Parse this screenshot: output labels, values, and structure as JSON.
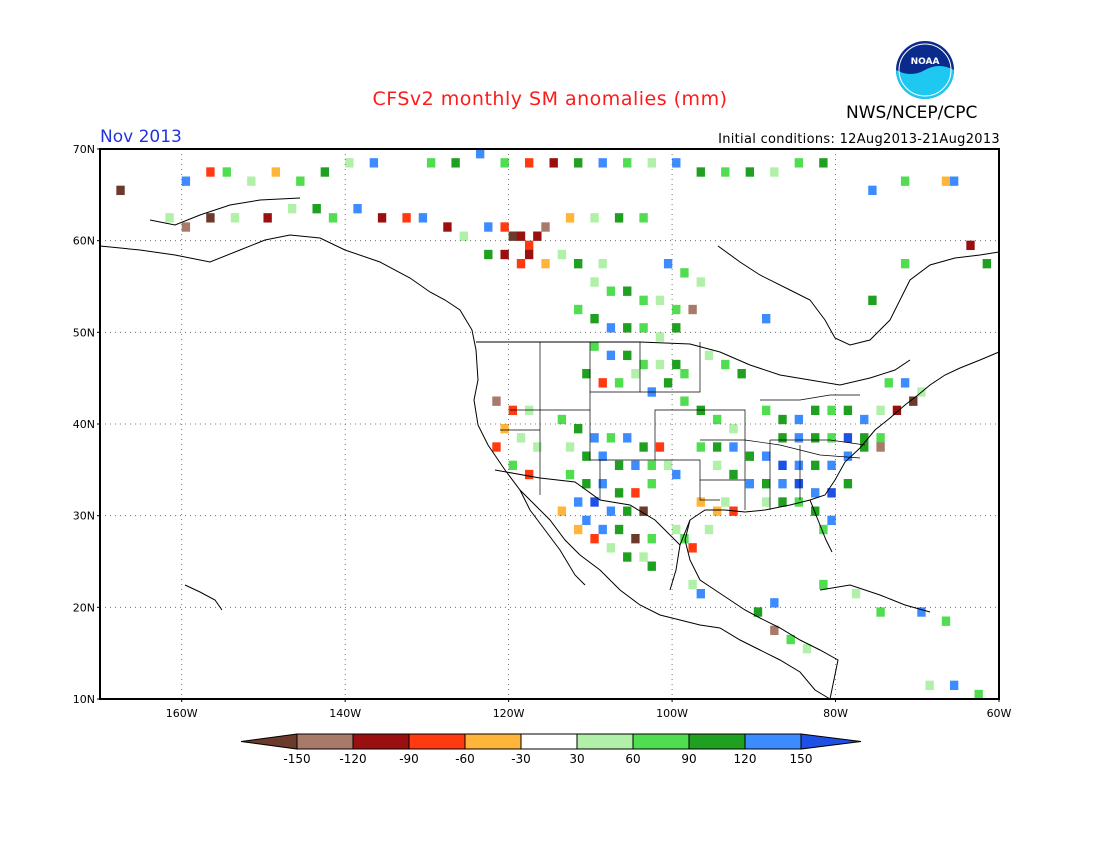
{
  "header": {
    "title": "CFSv2 monthly SM anomalies (mm)",
    "agency": "NWS/NCEP/CPC",
    "logo_text": "NOAA",
    "month": "Nov 2013",
    "initial_conditions": "Initial conditions: 12Aug2013-21Aug2013"
  },
  "axes": {
    "lat_labels": [
      "10N",
      "20N",
      "30N",
      "40N",
      "50N",
      "60N",
      "70N"
    ],
    "lon_labels": [
      "160W",
      "140W",
      "120W",
      "100W",
      "80W",
      "60W"
    ],
    "lat_range": [
      10,
      70
    ],
    "lon_range": [
      -170,
      -60
    ]
  },
  "colorbar": {
    "tick_labels": [
      "-150",
      "-120",
      "-90",
      "-60",
      "-30",
      "30",
      "60",
      "90",
      "120",
      "150"
    ],
    "colors": [
      "#6b3a2a",
      "#a87a6a",
      "#9a0f0f",
      "#ff3a10",
      "#ffb43a",
      "#ffffff",
      "#b0f0a8",
      "#50dd50",
      "#20a020",
      "#3c8cff",
      "#1e50e6"
    ]
  },
  "cells": [
    [
      -165,
      68,
      5
    ],
    [
      -160,
      66,
      9
    ],
    [
      -157,
      67,
      3
    ],
    [
      -155,
      67,
      7
    ],
    [
      -152,
      66,
      6
    ],
    [
      -149,
      67,
      4
    ],
    [
      -146,
      66,
      7
    ],
    [
      -143,
      67,
      8
    ],
    [
      -140,
      68,
      6
    ],
    [
      -137,
      68,
      9
    ],
    [
      -133,
      69,
      5
    ],
    [
      -130,
      68,
      7
    ],
    [
      -127,
      68,
      8
    ],
    [
      -124,
      69,
      9
    ],
    [
      -121,
      68,
      7
    ],
    [
      -118,
      68,
      3
    ],
    [
      -115,
      68,
      2
    ],
    [
      -112,
      68,
      8
    ],
    [
      -109,
      68,
      9
    ],
    [
      -106,
      68,
      7
    ],
    [
      -103,
      68,
      6
    ],
    [
      -100,
      68,
      9
    ],
    [
      -97,
      67,
      8
    ],
    [
      -94,
      67,
      7
    ],
    [
      -91,
      67,
      8
    ],
    [
      -88,
      67,
      6
    ],
    [
      -85,
      68,
      7
    ],
    [
      -82,
      68,
      8
    ],
    [
      -76,
      65,
      9
    ],
    [
      -72,
      66,
      7
    ],
    [
      -67,
      66,
      4
    ],
    [
      -66,
      66,
      9
    ],
    [
      -168,
      65,
      0
    ],
    [
      -162,
      62,
      6
    ],
    [
      -160,
      61,
      1
    ],
    [
      -157,
      62,
      0
    ],
    [
      -154,
      62,
      6
    ],
    [
      -150,
      62,
      2
    ],
    [
      -147,
      63,
      6
    ],
    [
      -144,
      63,
      8
    ],
    [
      -142,
      62,
      7
    ],
    [
      -139,
      63,
      9
    ],
    [
      -136,
      62,
      2
    ],
    [
      -133,
      62,
      3
    ],
    [
      -131,
      62,
      9
    ],
    [
      -128,
      61,
      2
    ],
    [
      -126,
      60,
      6
    ],
    [
      -123,
      61,
      9
    ],
    [
      -121,
      61,
      3
    ],
    [
      -120,
      60,
      0
    ],
    [
      -119,
      60,
      2
    ],
    [
      -118,
      59,
      3
    ],
    [
      -117,
      60,
      2
    ],
    [
      -116,
      61,
      1
    ],
    [
      -113,
      62,
      4
    ],
    [
      -110,
      62,
      6
    ],
    [
      -107,
      62,
      8
    ],
    [
      -104,
      62,
      7
    ],
    [
      -123,
      58,
      8
    ],
    [
      -121,
      58,
      2
    ],
    [
      -119,
      57,
      3
    ],
    [
      -118,
      58,
      2
    ],
    [
      -116,
      57,
      4
    ],
    [
      -114,
      58,
      6
    ],
    [
      -112,
      57,
      8
    ],
    [
      -109,
      57,
      6
    ],
    [
      -101,
      57,
      9
    ],
    [
      -99,
      56,
      7
    ],
    [
      -97,
      55,
      6
    ],
    [
      -110,
      55,
      6
    ],
    [
      -108,
      54,
      7
    ],
    [
      -106,
      54,
      8
    ],
    [
      -104,
      53,
      7
    ],
    [
      -102,
      53,
      6
    ],
    [
      -100,
      52,
      7
    ],
    [
      -98,
      52,
      1
    ],
    [
      -112,
      52,
      7
    ],
    [
      -110,
      51,
      8
    ],
    [
      -108,
      50,
      9
    ],
    [
      -106,
      50,
      8
    ],
    [
      -104,
      50,
      7
    ],
    [
      -102,
      49,
      6
    ],
    [
      -100,
      50,
      8
    ],
    [
      -110,
      48,
      7
    ],
    [
      -108,
      47,
      9
    ],
    [
      -106,
      47,
      8
    ],
    [
      -104,
      46,
      7
    ],
    [
      -102,
      46,
      6
    ],
    [
      -100,
      46,
      8
    ],
    [
      -99,
      45,
      7
    ],
    [
      -111,
      45,
      8
    ],
    [
      -109,
      44,
      3
    ],
    [
      -107,
      44,
      7
    ],
    [
      -105,
      45,
      6
    ],
    [
      -103,
      43,
      9
    ],
    [
      -101,
      44,
      8
    ],
    [
      -99,
      42,
      7
    ],
    [
      -96,
      47,
      6
    ],
    [
      -94,
      46,
      7
    ],
    [
      -92,
      45,
      8
    ],
    [
      -97,
      41,
      8
    ],
    [
      -95,
      40,
      7
    ],
    [
      -93,
      39,
      6
    ],
    [
      -122,
      42,
      1
    ],
    [
      -120,
      41,
      3
    ],
    [
      -118,
      41,
      6
    ],
    [
      -121,
      39,
      4
    ],
    [
      -119,
      38,
      6
    ],
    [
      -117,
      37,
      6
    ],
    [
      -122,
      37,
      3
    ],
    [
      -120,
      35,
      7
    ],
    [
      -118,
      34,
      3
    ],
    [
      -114,
      40,
      7
    ],
    [
      -112,
      39,
      8
    ],
    [
      -110,
      38,
      9
    ],
    [
      -108,
      38,
      7
    ],
    [
      -106,
      38,
      9
    ],
    [
      -104,
      37,
      8
    ],
    [
      -102,
      37,
      3
    ],
    [
      -113,
      37,
      6
    ],
    [
      -111,
      36,
      8
    ],
    [
      -109,
      36,
      9
    ],
    [
      -107,
      35,
      8
    ],
    [
      -105,
      35,
      9
    ],
    [
      -103,
      35,
      7
    ],
    [
      -101,
      35,
      6
    ],
    [
      -113,
      34,
      7
    ],
    [
      -111,
      33,
      8
    ],
    [
      -109,
      33,
      9
    ],
    [
      -107,
      32,
      8
    ],
    [
      -105,
      32,
      3
    ],
    [
      -103,
      33,
      7
    ],
    [
      -100,
      34,
      9
    ],
    [
      -112,
      31,
      9
    ],
    [
      -110,
      31,
      10
    ],
    [
      -108,
      30,
      9
    ],
    [
      -106,
      30,
      8
    ],
    [
      -104,
      30,
      0
    ],
    [
      -111,
      29,
      9
    ],
    [
      -109,
      28,
      9
    ],
    [
      -107,
      28,
      8
    ],
    [
      -105,
      27,
      0
    ],
    [
      -103,
      27,
      7
    ],
    [
      -106,
      25,
      8
    ],
    [
      -104,
      25,
      6
    ],
    [
      -103,
      24,
      8
    ],
    [
      -114,
      30,
      4
    ],
    [
      -112,
      28,
      4
    ],
    [
      -110,
      27,
      3
    ],
    [
      -108,
      26,
      6
    ],
    [
      -97,
      37,
      7
    ],
    [
      -95,
      37,
      8
    ],
    [
      -93,
      37,
      9
    ],
    [
      -91,
      36,
      8
    ],
    [
      -89,
      36,
      9
    ],
    [
      -87,
      35,
      10
    ],
    [
      -85,
      35,
      9
    ],
    [
      -83,
      35,
      8
    ],
    [
      -81,
      35,
      9
    ],
    [
      -79,
      36,
      9
    ],
    [
      -77,
      37,
      8
    ],
    [
      -75,
      38,
      7
    ],
    [
      -95,
      35,
      6
    ],
    [
      -93,
      34,
      8
    ],
    [
      -91,
      33,
      9
    ],
    [
      -89,
      33,
      8
    ],
    [
      -87,
      33,
      9
    ],
    [
      -85,
      33,
      10
    ],
    [
      -83,
      32,
      9
    ],
    [
      -81,
      32,
      10
    ],
    [
      -79,
      33,
      8
    ],
    [
      -89,
      31,
      6
    ],
    [
      -87,
      31,
      8
    ],
    [
      -85,
      31,
      7
    ],
    [
      -83,
      30,
      8
    ],
    [
      -81,
      29,
      9
    ],
    [
      -82,
      28,
      7
    ],
    [
      -89,
      41,
      7
    ],
    [
      -87,
      40,
      8
    ],
    [
      -85,
      40,
      9
    ],
    [
      -83,
      41,
      8
    ],
    [
      -81,
      41,
      7
    ],
    [
      -79,
      41,
      8
    ],
    [
      -77,
      40,
      9
    ],
    [
      -75,
      41,
      6
    ],
    [
      -73,
      41,
      2
    ],
    [
      -71,
      42,
      0
    ],
    [
      -74,
      44,
      7
    ],
    [
      -72,
      44,
      9
    ],
    [
      -70,
      43,
      6
    ],
    [
      -87,
      38,
      8
    ],
    [
      -85,
      38,
      9
    ],
    [
      -83,
      38,
      8
    ],
    [
      -81,
      38,
      7
    ],
    [
      -79,
      38,
      10
    ],
    [
      -77,
      38,
      8
    ],
    [
      -75,
      37,
      1
    ],
    [
      -95,
      30,
      4
    ],
    [
      -93,
      30,
      3
    ],
    [
      -97,
      31,
      4
    ],
    [
      -94,
      31,
      6
    ],
    [
      -96,
      28,
      6
    ],
    [
      -98,
      26,
      3
    ],
    [
      -100,
      28,
      6
    ],
    [
      -99,
      27,
      7
    ],
    [
      -98,
      22,
      6
    ],
    [
      -97,
      21,
      9
    ],
    [
      -90,
      19,
      8
    ],
    [
      -88,
      20,
      9
    ],
    [
      -88,
      17,
      1
    ],
    [
      -86,
      16,
      7
    ],
    [
      -84,
      15,
      6
    ],
    [
      -82,
      22,
      7
    ],
    [
      -78,
      21,
      6
    ],
    [
      -75,
      19,
      7
    ],
    [
      -70,
      19,
      9
    ],
    [
      -67,
      18,
      7
    ],
    [
      -69,
      11,
      6
    ],
    [
      -66,
      11,
      9
    ],
    [
      -63,
      10,
      7
    ],
    [
      -89,
      51,
      9
    ],
    [
      -76,
      53,
      8
    ],
    [
      -72,
      57,
      7
    ],
    [
      -64,
      59,
      2
    ],
    [
      -62,
      57,
      8
    ]
  ]
}
